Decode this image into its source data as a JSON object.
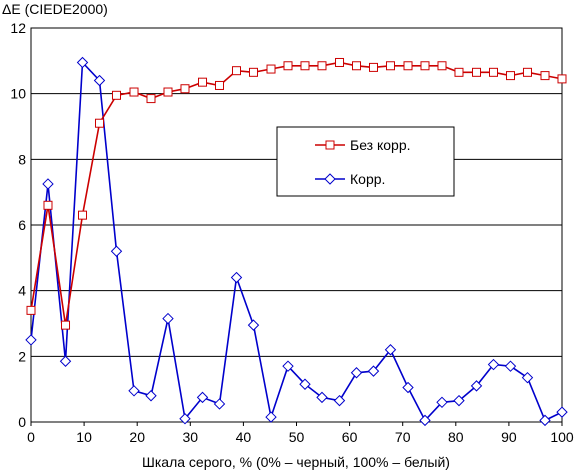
{
  "chart_data": {
    "type": "line",
    "ylabel": "ΔE (CIEDE2000)",
    "xlabel": "Шкала серого, % (0% – черный, 100% – белый)",
    "xlim": [
      0,
      100
    ],
    "ylim": [
      0,
      12
    ],
    "x_ticks": [
      0,
      10,
      20,
      30,
      40,
      50,
      60,
      70,
      80,
      90,
      100
    ],
    "y_ticks": [
      0,
      2,
      4,
      6,
      8,
      10,
      12
    ],
    "grid": "horizontal",
    "legend_position": "center-right",
    "series": [
      {
        "name": "Без корр.",
        "color": "#cc0000",
        "marker": "square",
        "x": [
          0,
          3.2,
          6.5,
          9.7,
          12.9,
          16.1,
          19.4,
          22.6,
          25.8,
          29.0,
          32.3,
          35.5,
          38.7,
          41.9,
          45.2,
          48.4,
          51.6,
          54.8,
          58.1,
          61.3,
          64.5,
          67.7,
          71.0,
          74.2,
          77.4,
          80.6,
          83.9,
          87.1,
          90.3,
          93.5,
          96.8,
          100
        ],
        "values": [
          3.4,
          6.6,
          2.95,
          6.3,
          9.1,
          9.95,
          10.05,
          9.85,
          10.05,
          10.15,
          10.35,
          10.25,
          10.7,
          10.65,
          10.75,
          10.85,
          10.85,
          10.85,
          10.95,
          10.85,
          10.8,
          10.85,
          10.85,
          10.85,
          10.85,
          10.65,
          10.65,
          10.65,
          10.55,
          10.65,
          10.55,
          10.45
        ]
      },
      {
        "name": "Корр.",
        "color": "#0000cc",
        "marker": "diamond",
        "x": [
          0,
          3.2,
          6.5,
          9.7,
          12.9,
          16.1,
          19.4,
          22.6,
          25.8,
          29.0,
          32.3,
          35.5,
          38.7,
          41.9,
          45.2,
          48.4,
          51.6,
          54.8,
          58.1,
          61.3,
          64.5,
          67.7,
          71.0,
          74.2,
          77.4,
          80.6,
          83.9,
          87.1,
          90.3,
          93.5,
          96.8,
          100
        ],
        "values": [
          2.5,
          7.25,
          1.85,
          10.95,
          10.4,
          5.2,
          0.95,
          0.8,
          3.15,
          0.1,
          0.75,
          0.55,
          4.4,
          2.95,
          0.15,
          1.7,
          1.15,
          0.75,
          0.65,
          1.5,
          1.55,
          2.2,
          1.05,
          0.05,
          0.6,
          0.65,
          1.1,
          1.75,
          1.7,
          1.35,
          0.05,
          0.3
        ]
      }
    ]
  }
}
